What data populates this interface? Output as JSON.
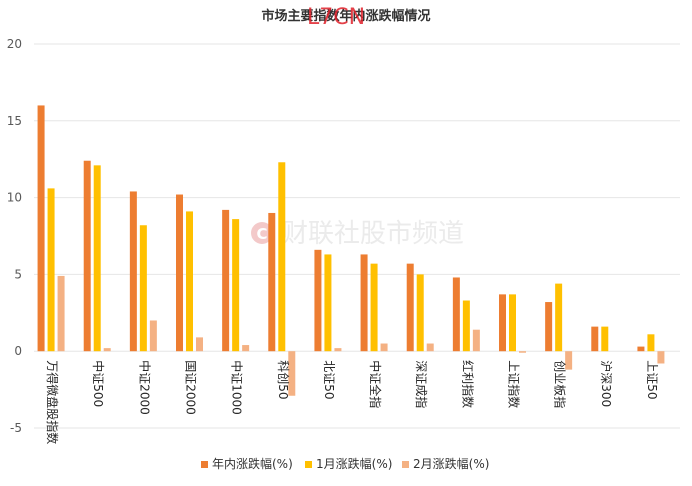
{
  "chart_data": {
    "type": "bar",
    "title": "市场主要指数年内涨跌幅情况",
    "xlabel": "",
    "ylabel": "",
    "ylim": [
      -5,
      20
    ],
    "yticks": [
      -5,
      0,
      5,
      10,
      15,
      20
    ],
    "grid": true,
    "legend_position": "bottom",
    "categories": [
      "万得微盘股指数",
      "中证500",
      "中证2000",
      "国证2000",
      "中证1000",
      "科创50",
      "北证50",
      "中证全指",
      "深证成指",
      "红利指数",
      "上证指数",
      "创业板指",
      "沪深300",
      "上证50"
    ],
    "series": [
      {
        "name": "年内涨跌幅(%)",
        "color": "#ed7d31",
        "values": [
          16.0,
          12.4,
          10.4,
          10.2,
          9.2,
          9.0,
          6.6,
          6.3,
          5.7,
          4.8,
          3.7,
          3.2,
          1.6,
          0.3
        ]
      },
      {
        "name": "1月涨跌幅(%)",
        "color": "#ffc000",
        "values": [
          10.6,
          12.1,
          8.2,
          9.1,
          8.6,
          12.3,
          6.3,
          5.7,
          5.0,
          3.3,
          3.7,
          4.4,
          1.6,
          1.1
        ]
      },
      {
        "name": "2月涨跌幅(%)",
        "color": "#f4b183",
        "values": [
          4.9,
          0.2,
          2.0,
          0.9,
          0.4,
          -2.9,
          0.2,
          0.5,
          0.5,
          1.4,
          -0.1,
          -1.2,
          0.0,
          -0.8
        ]
      }
    ]
  },
  "watermark": {
    "logo_letter": "C",
    "text": "财联社股市频道",
    "color": "#f2b8b8"
  },
  "overlay": {
    "text": "L7CN"
  }
}
